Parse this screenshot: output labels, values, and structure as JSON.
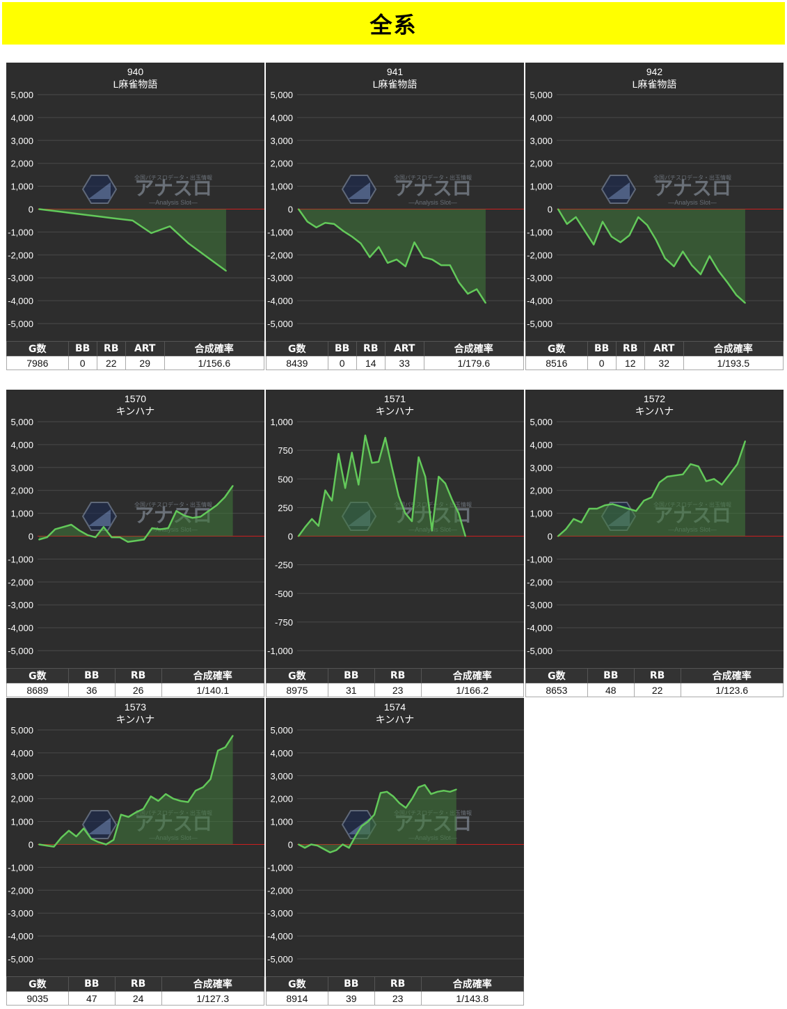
{
  "page": {
    "title": "全系"
  },
  "colors": {
    "background": "#2d2d2d",
    "line": "#63c95a",
    "fill": "#3f7a3a",
    "zero_line": "#cc1f1f",
    "grid": "#4a4a4a",
    "banner": "#ffff00",
    "header_bg": "#333333"
  },
  "watermark": {
    "brand": "アナスロ",
    "sub": "—Analysis Slot—",
    "tag": "全国パチスロデータ・出玉情報"
  },
  "machines": [
    {
      "number": "940",
      "name": "L麻雀物語",
      "stats": {
        "headers": [
          "G数",
          "BB",
          "RB",
          "ART",
          "合成確率"
        ],
        "values": [
          "7986",
          "0",
          "22",
          "29",
          "1/156.6"
        ]
      },
      "chart_data": {
        "type": "area",
        "ylim": [
          -5000,
          5000
        ],
        "yticks": [
          "5,000",
          "4,000",
          "3,000",
          "2,000",
          "1,000",
          "0",
          "-1,000",
          "-2,000",
          "-3,000",
          "-4,000",
          "-5,000"
        ],
        "values": [
          0,
          -100,
          -200,
          -300,
          -400,
          -500,
          -1050,
          -750,
          -1500,
          -2100,
          -2700
        ],
        "x_end": 0.83,
        "grid": true
      }
    },
    {
      "number": "941",
      "name": "L麻雀物語",
      "stats": {
        "headers": [
          "G数",
          "BB",
          "RB",
          "ART",
          "合成確率"
        ],
        "values": [
          "8439",
          "0",
          "14",
          "33",
          "1/179.6"
        ]
      },
      "chart_data": {
        "type": "area",
        "ylim": [
          -5000,
          5000
        ],
        "yticks": [
          "5,000",
          "4,000",
          "3,000",
          "2,000",
          "1,000",
          "0",
          "-1,000",
          "-2,000",
          "-3,000",
          "-4,000",
          "-5,000"
        ],
        "values": [
          0,
          -550,
          -800,
          -600,
          -650,
          -950,
          -1200,
          -1500,
          -2100,
          -1650,
          -2350,
          -2200,
          -2500,
          -1450,
          -2100,
          -2200,
          -2450,
          -2450,
          -3200,
          -3700,
          -3500,
          -4100
        ],
        "x_end": 0.83,
        "grid": true
      }
    },
    {
      "number": "942",
      "name": "L麻雀物語",
      "stats": {
        "headers": [
          "G数",
          "BB",
          "RB",
          "ART",
          "合成確率"
        ],
        "values": [
          "8516",
          "0",
          "12",
          "32",
          "1/193.5"
        ]
      },
      "chart_data": {
        "type": "area",
        "ylim": [
          -5000,
          5000
        ],
        "yticks": [
          "5,000",
          "4,000",
          "3,000",
          "2,000",
          "1,000",
          "0",
          "-1,000",
          "-2,000",
          "-3,000",
          "-4,000",
          "-5,000"
        ],
        "values": [
          0,
          -650,
          -350,
          -950,
          -1550,
          -550,
          -1200,
          -1450,
          -1150,
          -350,
          -700,
          -1350,
          -2150,
          -2500,
          -1850,
          -2450,
          -2850,
          -2050,
          -2700,
          -3200,
          -3750,
          -4100
        ],
        "x_end": 0.83,
        "grid": true
      }
    },
    {
      "number": "1570",
      "name": "キンハナ",
      "stats": {
        "headers": [
          "G数",
          "BB",
          "RB",
          "合成確率"
        ],
        "values": [
          "8689",
          "36",
          "26",
          "1/140.1"
        ]
      },
      "chart_data": {
        "type": "area",
        "ylim": [
          -5000,
          5000
        ],
        "yticks": [
          "5,000",
          "4,000",
          "3,000",
          "2,000",
          "1,000",
          "0",
          "-1,000",
          "-2,000",
          "-3,000",
          "-4,000",
          "-5,000"
        ],
        "values": [
          -150,
          -50,
          300,
          400,
          500,
          250,
          50,
          -50,
          400,
          -50,
          -50,
          -250,
          -200,
          -150,
          350,
          300,
          350,
          1100,
          900,
          800,
          850,
          1100,
          1350,
          1700,
          2200
        ],
        "x_end": 0.86,
        "grid": true
      }
    },
    {
      "number": "1571",
      "name": "キンハナ",
      "stats": {
        "headers": [
          "G数",
          "BB",
          "RB",
          "合成確率"
        ],
        "values": [
          "8975",
          "31",
          "23",
          "1/166.2"
        ]
      },
      "chart_data": {
        "type": "area",
        "ylim": [
          -1000,
          1000
        ],
        "yticks": [
          "1,000",
          "750",
          "500",
          "250",
          "0",
          "-250",
          "-500",
          "-750",
          "-1,000"
        ],
        "values": [
          0,
          80,
          150,
          90,
          400,
          310,
          720,
          420,
          730,
          450,
          880,
          640,
          650,
          860,
          600,
          350,
          200,
          130,
          690,
          520,
          50,
          520,
          460,
          320,
          200,
          0
        ],
        "x_end": 0.74,
        "grid": true
      }
    },
    {
      "number": "1572",
      "name": "キンハナ",
      "stats": {
        "headers": [
          "G数",
          "BB",
          "RB",
          "合成確率"
        ],
        "values": [
          "8653",
          "48",
          "22",
          "1/123.6"
        ]
      },
      "chart_data": {
        "type": "area",
        "ylim": [
          -5000,
          5000
        ],
        "yticks": [
          "5,000",
          "4,000",
          "3,000",
          "2,000",
          "1,000",
          "0",
          "-1,000",
          "-2,000",
          "-3,000",
          "-4,000",
          "-5,000"
        ],
        "values": [
          0,
          300,
          750,
          600,
          1200,
          1200,
          1350,
          1400,
          1300,
          1200,
          1100,
          1550,
          1700,
          2350,
          2600,
          2650,
          2700,
          3150,
          3050,
          2400,
          2500,
          2250,
          2700,
          3150,
          4150
        ],
        "x_end": 0.83,
        "grid": true
      }
    },
    {
      "number": "1573",
      "name": "キンハナ",
      "stats": {
        "headers": [
          "G数",
          "BB",
          "RB",
          "合成確率"
        ],
        "values": [
          "9035",
          "47",
          "24",
          "1/127.3"
        ]
      },
      "chart_data": {
        "type": "area",
        "ylim": [
          -5000,
          5000
        ],
        "yticks": [
          "5,000",
          "4,000",
          "3,000",
          "2,000",
          "1,000",
          "0",
          "-1,000",
          "-2,000",
          "-3,000",
          "-4,000",
          "-5,000"
        ],
        "values": [
          0,
          -50,
          -100,
          300,
          600,
          350,
          700,
          250,
          100,
          0,
          200,
          1300,
          1200,
          1400,
          1550,
          2100,
          1900,
          2200,
          2000,
          1900,
          1850,
          2350,
          2500,
          2850,
          4100,
          4250,
          4750
        ],
        "x_end": 0.86,
        "grid": true
      }
    },
    {
      "number": "1574",
      "name": "キンハナ",
      "stats": {
        "headers": [
          "G数",
          "BB",
          "RB",
          "合成確率"
        ],
        "values": [
          "8914",
          "39",
          "23",
          "1/143.8"
        ]
      },
      "chart_data": {
        "type": "area",
        "ylim": [
          -5000,
          5000
        ],
        "yticks": [
          "5,000",
          "4,000",
          "3,000",
          "2,000",
          "1,000",
          "0",
          "-1,000",
          "-2,000",
          "-3,000",
          "-4,000",
          "-5,000"
        ],
        "values": [
          0,
          -150,
          0,
          -50,
          -200,
          -350,
          -250,
          0,
          -150,
          350,
          800,
          1000,
          1300,
          2250,
          2300,
          2100,
          1800,
          1600,
          2000,
          2500,
          2600,
          2200,
          2300,
          2350,
          2300,
          2400
        ],
        "x_end": 0.7,
        "grid": true
      }
    }
  ]
}
